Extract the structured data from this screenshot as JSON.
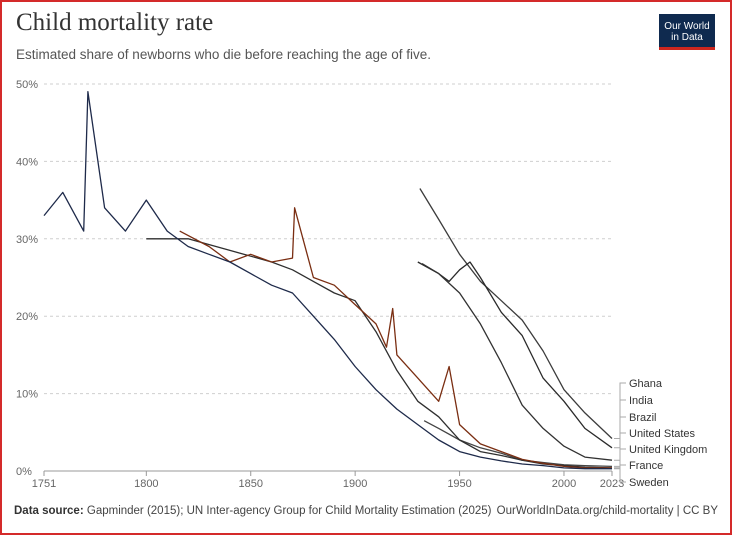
{
  "header": {
    "title": "Child mortality rate",
    "subtitle": "Estimated share of newborns who die before reaching the age of five."
  },
  "logo": {
    "line1": "Our World",
    "line2": "in Data"
  },
  "footer": {
    "source_label": "Data source:",
    "source_text": "Gapminder (2015); UN Inter-agency Group for Child Mortality Estimation (2025)",
    "credit": "OurWorldInData.org/child-mortality | CC BY"
  },
  "chart_data": {
    "type": "line",
    "title": "Child mortality rate",
    "subtitle": "Estimated share of newborns who die before reaching the age of five.",
    "xlabel": "",
    "ylabel": "",
    "xlim": [
      1751,
      2023
    ],
    "ylim": [
      0,
      50
    ],
    "x_ticks": [
      1751,
      1800,
      1850,
      1900,
      1950,
      2000,
      2023
    ],
    "y_ticks": [
      0,
      10,
      20,
      30,
      40,
      50
    ],
    "y_tick_labels": [
      "0%",
      "10%",
      "20%",
      "30%",
      "40%",
      "50%"
    ],
    "grid": "horizontal dashed",
    "legend_position": "right",
    "series": [
      {
        "name": "Ghana",
        "color": "#3c3c3c",
        "x": [
          1931,
          1940,
          1950,
          1960,
          1970,
          1980,
          1990,
          2000,
          2010,
          2023
        ],
        "y": [
          36.5,
          32.5,
          28,
          24.5,
          22,
          19.5,
          15.5,
          10.5,
          7.5,
          4.2
        ]
      },
      {
        "name": "India",
        "color": "#2a2a2a",
        "x": [
          1930,
          1940,
          1945,
          1950,
          1955,
          1960,
          1970,
          1980,
          1990,
          2000,
          2010,
          2023
        ],
        "y": [
          27,
          25.5,
          24.5,
          26,
          27,
          25,
          20.5,
          17.5,
          12,
          9,
          5.5,
          3
        ]
      },
      {
        "name": "Brazil",
        "color": "#323232",
        "x": [
          1932,
          1940,
          1950,
          1960,
          1970,
          1980,
          1990,
          2000,
          2010,
          2023
        ],
        "y": [
          26.8,
          25.5,
          23,
          19,
          14,
          8.5,
          5.5,
          3.2,
          1.8,
          1.4
        ]
      },
      {
        "name": "United States",
        "color": "#444444",
        "x": [
          1933,
          1940,
          1950,
          1960,
          1970,
          1980,
          1990,
          2000,
          2010,
          2023
        ],
        "y": [
          6.5,
          5.5,
          4,
          3,
          2.3,
          1.4,
          1.1,
          0.8,
          0.7,
          0.6
        ]
      },
      {
        "name": "United Kingdom",
        "color": "#2f2f2f",
        "x": [
          1800,
          1820,
          1840,
          1860,
          1870,
          1880,
          1890,
          1900,
          1910,
          1920,
          1930,
          1940,
          1945,
          1950,
          1960,
          1970,
          1980,
          1990,
          2000,
          2010,
          2023
        ],
        "y": [
          30,
          30,
          28.5,
          27,
          26,
          24.5,
          23,
          22,
          18,
          13,
          9,
          7,
          5.5,
          4,
          2.5,
          2,
          1.4,
          0.9,
          0.7,
          0.5,
          0.4
        ]
      },
      {
        "name": "France",
        "color": "#7a2e12",
        "x": [
          1816,
          1830,
          1840,
          1850,
          1860,
          1870,
          1871,
          1880,
          1890,
          1900,
          1910,
          1915,
          1918,
          1920,
          1930,
          1940,
          1945,
          1950,
          1960,
          1970,
          1980,
          1990,
          2000,
          2010,
          2023
        ],
        "y": [
          31,
          29,
          27,
          28,
          27,
          27.5,
          34,
          25,
          24,
          21.5,
          19,
          16,
          21,
          15,
          12,
          9,
          13.5,
          6,
          3.5,
          2.5,
          1.5,
          1,
          0.6,
          0.4,
          0.4
        ]
      },
      {
        "name": "Sweden",
        "color": "#1e2a4a",
        "x": [
          1751,
          1760,
          1770,
          1772,
          1780,
          1790,
          1800,
          1810,
          1820,
          1830,
          1840,
          1850,
          1860,
          1870,
          1880,
          1890,
          1900,
          1910,
          1920,
          1930,
          1940,
          1950,
          1960,
          1970,
          1980,
          1990,
          2000,
          2010,
          2023
        ],
        "y": [
          33,
          36,
          31,
          49,
          34,
          31,
          35,
          31,
          29,
          28,
          27,
          25.5,
          24,
          23,
          20,
          17,
          13.5,
          10.5,
          8,
          6,
          4,
          2.5,
          1.8,
          1.3,
          0.9,
          0.7,
          0.4,
          0.3,
          0.3
        ]
      }
    ]
  }
}
